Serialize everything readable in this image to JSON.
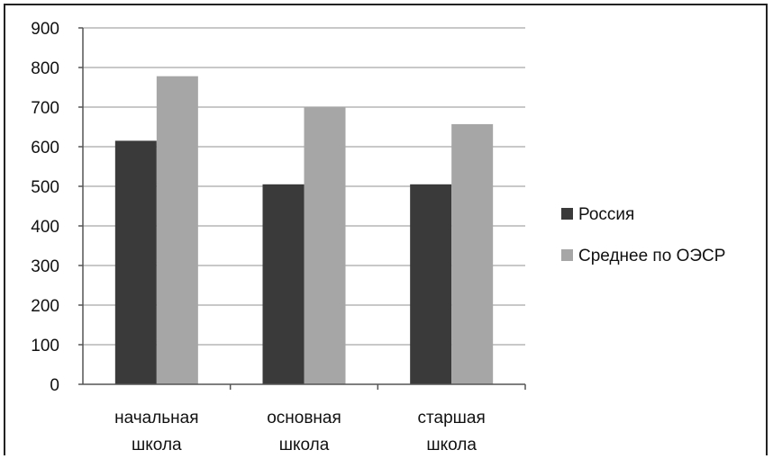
{
  "chart_data": {
    "type": "bar",
    "categories": [
      [
        "начальная",
        "школа"
      ],
      [
        "основная",
        "школа"
      ],
      [
        "старшая",
        "школа"
      ]
    ],
    "series": [
      {
        "name": "Россия",
        "values": [
          615,
          505,
          505
        ],
        "color": "#3a3a3a"
      },
      {
        "name": "Среднее по ОЭСР",
        "values": [
          778,
          700,
          657
        ],
        "color": "#a6a6a6"
      }
    ],
    "yticks": [
      0,
      100,
      200,
      300,
      400,
      500,
      600,
      700,
      800,
      900
    ],
    "ylim": [
      0,
      900
    ],
    "grid": true,
    "legend": "right"
  }
}
